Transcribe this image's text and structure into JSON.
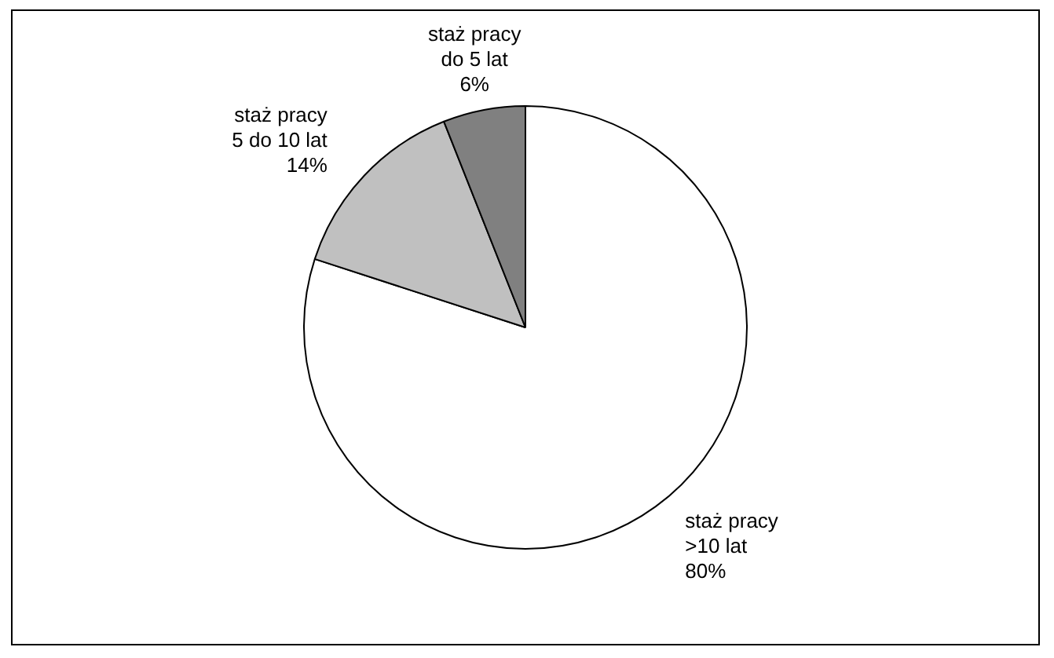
{
  "chart_data": {
    "type": "pie",
    "categories": [
      "staż pracy\n>10 lat",
      "staż pracy\n5 do 10 lat",
      "staż pracy\ndo 5 lat"
    ],
    "values": [
      80,
      14,
      6
    ],
    "colors": [
      "#ffffff",
      "#c0c0c0",
      "#808080"
    ],
    "value_labels": [
      "80%",
      "14%",
      "6%"
    ],
    "legend": false
  }
}
